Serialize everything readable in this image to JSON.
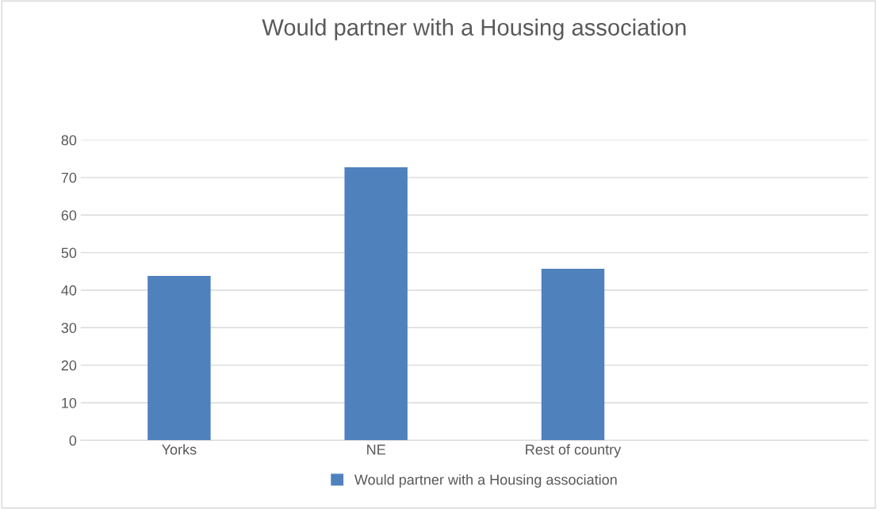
{
  "chart_data": {
    "type": "bar",
    "title": "Would partner with a Housing association",
    "categories": [
      "Yorks",
      "NE",
      "Rest of country",
      null
    ],
    "series": [
      {
        "name": "Would partner with a Housing association",
        "color": "#4f81bd",
        "values": [
          43.8,
          72.7,
          45.7,
          null
        ]
      }
    ],
    "ylim": [
      0,
      80
    ],
    "yticks": [
      0,
      10,
      20,
      30,
      40,
      50,
      60,
      70,
      80
    ],
    "grid": "y",
    "legend": "bottom"
  }
}
